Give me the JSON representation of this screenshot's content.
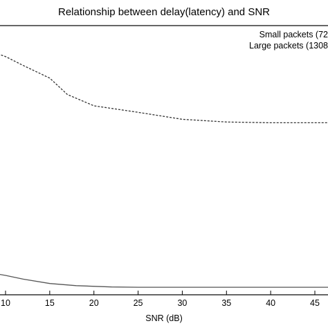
{
  "chart_data": {
    "type": "line",
    "title": "Relationship between delay(latency) and SNR",
    "xlabel": "SNR (dB)",
    "ylabel": "",
    "xlim": [
      5,
      48
    ],
    "ylim": [
      0,
      100
    ],
    "x_ticks": [
      10,
      15,
      20,
      25,
      30,
      35,
      40,
      45
    ],
    "grid": false,
    "legend_position": "top-right",
    "legend": [
      "Small packets (72",
      "Large packets (1308"
    ],
    "series": [
      {
        "name": "Small packets (72",
        "style": "solid",
        "color": "#555555",
        "x": [
          5,
          7,
          10,
          12,
          15,
          18,
          22,
          25,
          30,
          35,
          40,
          48
        ],
        "y": [
          9.5,
          8.9,
          7.2,
          5.8,
          4.2,
          3.4,
          2.9,
          2.8,
          2.8,
          2.8,
          2.8,
          2.8
        ]
      },
      {
        "name": "Large packets (1308",
        "style": "dashed",
        "color": "#333333",
        "x": [
          5,
          7,
          10,
          12,
          15,
          17,
          20,
          25,
          30,
          35,
          40,
          48
        ],
        "y": [
          93.5,
          91.8,
          88.5,
          85.2,
          80.5,
          74.4,
          70.2,
          67.8,
          65.2,
          64.2,
          63.9,
          63.9
        ]
      }
    ]
  }
}
